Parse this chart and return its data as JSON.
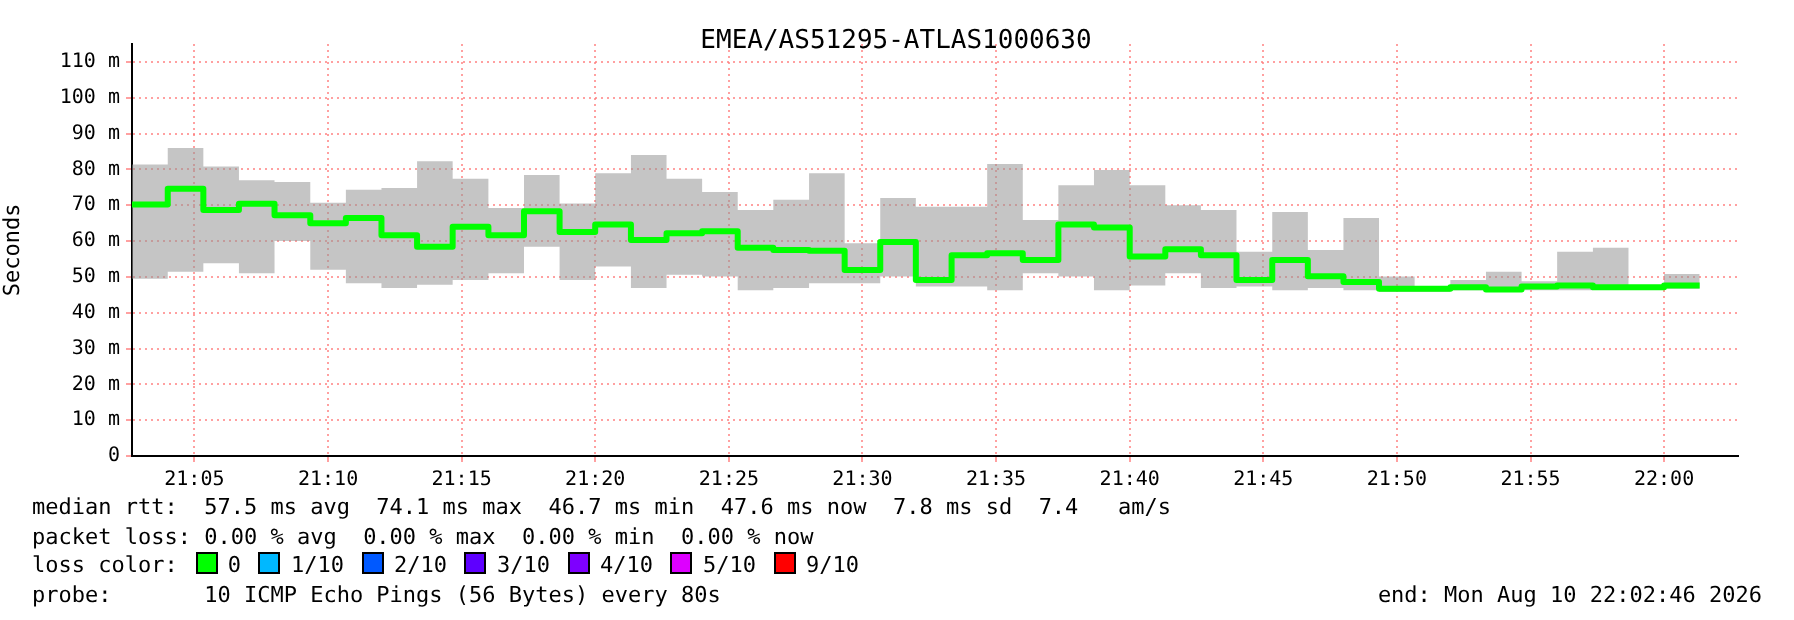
{
  "chart_data": {
    "type": "step",
    "title": "EMEA/AS51295-ATLAS1000630",
    "ylabel": "Seconds",
    "x": [
      21.0444,
      21.0667,
      21.0889,
      21.1111,
      21.1333,
      21.1556,
      21.1778,
      21.2,
      21.2222,
      21.2444,
      21.2667,
      21.2889,
      21.3111,
      21.3333,
      21.3556,
      21.3778,
      21.4,
      21.4222,
      21.4444,
      21.4667,
      21.4889,
      21.5111,
      21.5333,
      21.5556,
      21.5778,
      21.6,
      21.6222,
      21.6444,
      21.6667,
      21.6889,
      21.7111,
      21.7333,
      21.7556,
      21.7778,
      21.8,
      21.8222,
      21.8444,
      21.8667,
      21.8889,
      21.9111,
      21.9333,
      21.9556,
      21.9778,
      22.0,
      22.0222
    ],
    "series": [
      {
        "color": "#00ff00",
        "values": [
          70.2,
          74.6,
          68.7,
          70.4,
          67.2,
          65,
          66.4,
          61.6,
          58.4,
          64,
          61.6,
          68.3,
          62.5,
          64.6,
          60.3,
          62.2,
          62.7,
          58.1,
          57.5,
          57.3,
          51.9,
          59.7,
          49.1,
          56,
          56.6,
          54.7,
          64.6,
          63.8,
          55.7,
          57.7,
          56,
          49.1,
          54.7,
          50.2,
          48.6,
          46.7,
          46.7,
          47.1,
          46.5,
          47.3,
          47.6,
          47.1,
          47.1,
          47.6,
          47.6
        ],
        "lower": [
          49.5,
          51.4,
          53.8,
          51,
          60,
          52,
          48.2,
          46.9,
          47.8,
          49.1,
          51,
          58.4,
          49.1,
          52.9,
          46.9,
          50.6,
          50.1,
          46.3,
          46.9,
          48.2,
          48.2,
          50.1,
          47.3,
          47.3,
          46.3,
          51,
          50.1,
          46.3,
          47.6,
          51,
          46.9,
          47.3,
          46.3,
          46.9,
          46.3,
          45.8,
          45.8,
          46.3,
          45.8,
          46.3,
          46.3,
          46.9,
          46.5,
          46.7,
          46.7
        ],
        "upper": [
          81.4,
          86,
          80.8,
          77,
          76.5,
          70.7,
          74.3,
          74.8,
          82.3,
          77.4,
          69.2,
          78.4,
          70.5,
          78.9,
          84,
          77.4,
          73.7,
          68.7,
          71.5,
          78.9,
          59.4,
          72,
          69.6,
          69.6,
          81.5,
          65.9,
          75.6,
          79.8,
          75.6,
          70,
          68.7,
          57,
          68.1,
          57.5,
          66.4,
          50.1,
          47.3,
          49.1,
          51.4,
          48.8,
          57,
          58.1,
          47.6,
          50.8,
          50.8
        ]
      }
    ],
    "xlim": [
      21.0444,
      22.0461
    ],
    "xticks": [
      {
        "value": 21.0833,
        "label": "21:05"
      },
      {
        "value": 21.1667,
        "label": "21:10"
      },
      {
        "value": 21.25,
        "label": "21:15"
      },
      {
        "value": 21.3333,
        "label": "21:20"
      },
      {
        "value": 21.4167,
        "label": "21:25"
      },
      {
        "value": 21.5,
        "label": "21:30"
      },
      {
        "value": 21.5833,
        "label": "21:35"
      },
      {
        "value": 21.6667,
        "label": "21:40"
      },
      {
        "value": 21.75,
        "label": "21:45"
      },
      {
        "value": 21.8333,
        "label": "21:50"
      },
      {
        "value": 21.9167,
        "label": "21:55"
      },
      {
        "value": 22.0,
        "label": "22:00"
      }
    ],
    "ylim": [
      0,
      115
    ],
    "yticks": [
      0,
      {
        "value": 10,
        "label": "10 m"
      },
      {
        "value": 20,
        "label": "20 m"
      },
      {
        "value": 30,
        "label": "30 m"
      },
      {
        "value": 40,
        "label": "40 m"
      },
      {
        "value": 50,
        "label": "50 m"
      },
      {
        "value": 60,
        "label": "60 m"
      },
      {
        "value": 70,
        "label": "70 m"
      },
      {
        "value": 80,
        "label": "80 m"
      },
      {
        "value": 90,
        "label": "90 m"
      },
      {
        "value": 100,
        "label": "100 m"
      },
      {
        "value": 110,
        "label": "110 m"
      }
    ],
    "grid": true,
    "legend": false,
    "annotations": [
      "median rtt:  57.5 ms avg  74.1 ms max  46.7 ms min  47.6 ms now  7.8 ms sd  7.4   am/s",
      "packet loss: 0.00 % avg  0.00 % max  0.00 % min  0.00 % now",
      "loss color:",
      "0",
      "1/10",
      "2/10",
      "3/10",
      "4/10",
      "5/10",
      "9/10",
      "probe:       10 ICMP Echo Pings (56 Bytes) every 80s",
      "end: Mon Aug 10 22:02:46 2026"
    ]
  }
}
